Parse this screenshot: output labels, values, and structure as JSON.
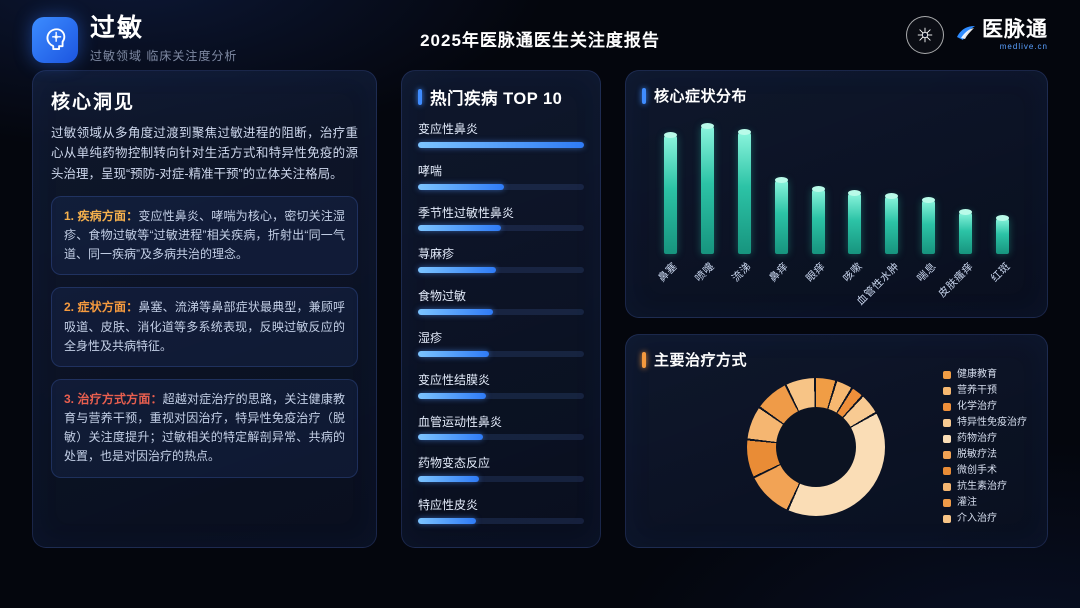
{
  "theme": {
    "background": "#04060d",
    "accent_blue": "#3f8cff",
    "accent_orange": "#f59a3e",
    "bar_blue_gradient": [
      "#7cc4ff",
      "#2f7bf6"
    ],
    "bar_teal_gradient": [
      "#8bf5dd",
      "#17947e"
    ]
  },
  "header": {
    "title": "过敏",
    "subtitle": "过敏领域 临床关注度分析",
    "report_title": "2025年医脉通医生关注度报告",
    "brand_name": "医脉通",
    "brand_domain": "medlive.cn"
  },
  "insights": {
    "title": "核心洞见",
    "intro": "过敏领域从多角度过渡到聚焦过敏进程的阻断，治疗重心从单纯药物控制转向针对生活方式和特异性免疫的源头治理，呈现“预防-对症-精准干预”的立体关注格局。",
    "cards": [
      {
        "lead": "1. 疾病方面：",
        "lead_color": "#f5b04d",
        "text": "变应性鼻炎、哮喘为核心，密切关注湿疹、食物过敏等“过敏进程”相关疾病，折射出“同一气道、同一疾病”及多病共治的理念。"
      },
      {
        "lead": "2. 症状方面：",
        "lead_color": "#f59a3e",
        "text": "鼻塞、流涕等鼻部症状最典型，兼顾呼吸道、皮肤、消化道等多系统表现，反映过敏反应的全身性及共病特征。"
      },
      {
        "lead": "3. 治疗方式方面：",
        "lead_color": "#e95f4f",
        "text": "超越对症治疗的思路，关注健康教育与营养干预，重视对因治疗，特异性免疫治疗（脱敏）关注度提升；过敏相关的特定解剖异常、共病的处置，也是对因治疗的热点。"
      }
    ]
  },
  "chart_data": [
    {
      "id": "top_diseases",
      "type": "bar",
      "orientation": "horizontal",
      "title": "热门疾病 TOP 10",
      "categories": [
        "变应性鼻炎",
        "哮喘",
        "季节性过敏性鼻炎",
        "荨麻疹",
        "食物过敏",
        "湿疹",
        "变应性结膜炎",
        "血管运动性鼻炎",
        "药物变态反应",
        "特应性皮炎"
      ],
      "values": [
        100,
        52,
        50,
        47,
        45,
        43,
        41,
        39,
        37,
        35
      ],
      "value_note": "relative attention; no numeric axis shown in source"
    },
    {
      "id": "symptoms",
      "type": "bar",
      "title": "核心症状分布",
      "categories": [
        "鼻塞",
        "喷嚏",
        "流涕",
        "鼻痒",
        "眼痒",
        "咳嗽",
        "血管性水肿",
        "喘息",
        "皮肤瘙痒",
        "红斑"
      ],
      "values": [
        88,
        95,
        90,
        55,
        48,
        45,
        43,
        40,
        31,
        27
      ],
      "value_note": "relative attention; no numeric axis shown in source"
    },
    {
      "id": "treatments",
      "type": "pie",
      "title": "主要治疗方式",
      "legend": [
        "健康教育",
        "营养干预",
        "化学治疗",
        "特异性免疫治疗",
        "药物治疗",
        "脱敏疗法",
        "微创手术",
        "抗生素治疗",
        "灌注",
        "介入治疗"
      ],
      "values": [
        5,
        4,
        3,
        5,
        40,
        11,
        9,
        8,
        8,
        7
      ],
      "colors": [
        "#f09d45",
        "#f6b871",
        "#ef8f3a",
        "#f8ca92",
        "#faddb6",
        "#f2a355",
        "#e98c36",
        "#f5b671",
        "#ef9b48",
        "#f7c486"
      ],
      "gap_color": "#0c1322",
      "value_note": "slice percentages estimated from donut"
    }
  ]
}
